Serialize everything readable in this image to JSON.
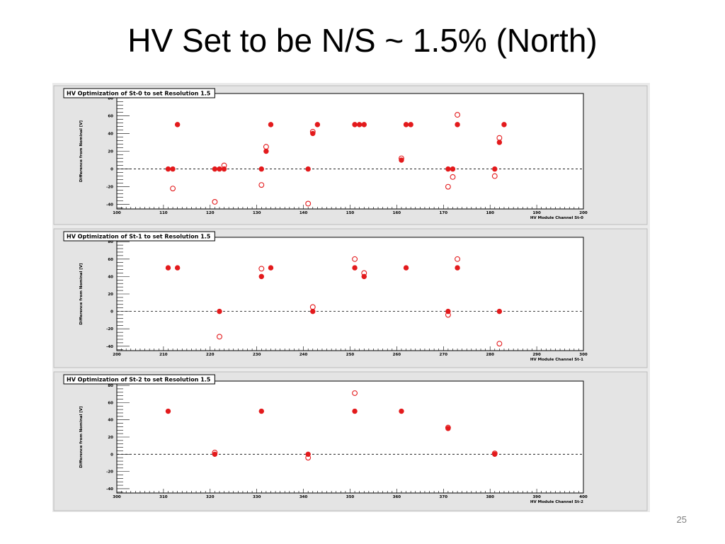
{
  "slide": {
    "title": "HV Set to be N/S ~ 1.5% (North)",
    "page_number": "25"
  },
  "colors": {
    "marker": "#e31a1c",
    "frame_background": "#ebebeb",
    "plot_background": "#ffffff"
  },
  "chart_data": [
    {
      "type": "scatter",
      "title": "HV Optimization of St-0 to set Resolution 1.5",
      "xlabel": "HV Module Channel St-0",
      "ylabel": "Difference from Nominal [V]",
      "xlim": [
        100,
        200
      ],
      "ylim": [
        -45,
        85
      ],
      "xticks": [
        "100",
        "110",
        "120",
        "130",
        "140",
        "150",
        "160",
        "170",
        "180",
        "190",
        "200"
      ],
      "yticks": [
        "-40",
        "-20",
        "0",
        "20",
        "40",
        "60",
        "80"
      ],
      "reference_line_y": 0,
      "grid": false,
      "series": [
        {
          "marker": "filled-circle",
          "points": [
            [
              111,
              0
            ],
            [
              112,
              0
            ],
            [
              113,
              50
            ],
            [
              121,
              0
            ],
            [
              122,
              0
            ],
            [
              123,
              0
            ],
            [
              131,
              0
            ],
            [
              132,
              20
            ],
            [
              133,
              50
            ],
            [
              141,
              0
            ],
            [
              142,
              40
            ],
            [
              143,
              50
            ],
            [
              151,
              50
            ],
            [
              152,
              50
            ],
            [
              153,
              50
            ],
            [
              161,
              10
            ],
            [
              162,
              50
            ],
            [
              163,
              50
            ],
            [
              171,
              0
            ],
            [
              172,
              0
            ],
            [
              173,
              50
            ],
            [
              181,
              0
            ],
            [
              182,
              30
            ],
            [
              183,
              50
            ]
          ]
        },
        {
          "marker": "open-circle",
          "points": [
            [
              112,
              -22
            ],
            [
              121,
              -37
            ],
            [
              123,
              4
            ],
            [
              131,
              -18
            ],
            [
              132,
              25
            ],
            [
              141,
              -39
            ],
            [
              142,
              42
            ],
            [
              161,
              12
            ],
            [
              171,
              -20
            ],
            [
              172,
              -9
            ],
            [
              173,
              61
            ],
            [
              181,
              -8
            ],
            [
              182,
              35
            ]
          ]
        }
      ]
    },
    {
      "type": "scatter",
      "title": "HV Optimization of St-1 to set Resolution 1.5",
      "xlabel": "HV Module Channel St-1",
      "ylabel": "Difference from Nominal [V]",
      "xlim": [
        200,
        300
      ],
      "ylim": [
        -45,
        85
      ],
      "xticks": [
        "200",
        "210",
        "220",
        "230",
        "240",
        "250",
        "260",
        "270",
        "280",
        "290",
        "300"
      ],
      "yticks": [
        "-40",
        "-20",
        "0",
        "20",
        "40",
        "60",
        "80"
      ],
      "reference_line_y": 0,
      "grid": false,
      "series": [
        {
          "marker": "filled-circle",
          "points": [
            [
              211,
              50
            ],
            [
              213,
              50
            ],
            [
              222,
              0
            ],
            [
              231,
              40
            ],
            [
              233,
              50
            ],
            [
              242,
              0
            ],
            [
              251,
              50
            ],
            [
              253,
              40
            ],
            [
              262,
              50
            ],
            [
              271,
              0
            ],
            [
              273,
              50
            ],
            [
              282,
              0
            ]
          ]
        },
        {
          "marker": "open-circle",
          "points": [
            [
              222,
              -29
            ],
            [
              231,
              49
            ],
            [
              242,
              5
            ],
            [
              251,
              60
            ],
            [
              253,
              44
            ],
            [
              271,
              -4
            ],
            [
              273,
              60
            ],
            [
              282,
              -37
            ]
          ]
        }
      ]
    },
    {
      "type": "scatter",
      "title": "HV Optimization of St-2 to set Resolution 1.5",
      "xlabel": "HV Module Channel St-2",
      "ylabel": "Difference from Nominal [V]",
      "xlim": [
        300,
        400
      ],
      "ylim": [
        -45,
        85
      ],
      "xticks": [
        "300",
        "310",
        "320",
        "330",
        "340",
        "350",
        "360",
        "370",
        "380",
        "390",
        "400"
      ],
      "yticks": [
        "-40",
        "-20",
        "0",
        "20",
        "40",
        "60",
        "80"
      ],
      "reference_line_y": 0,
      "grid": false,
      "series": [
        {
          "marker": "filled-circle",
          "points": [
            [
              311,
              50
            ],
            [
              321,
              0
            ],
            [
              331,
              50
            ],
            [
              341,
              0
            ],
            [
              351,
              50
            ],
            [
              361,
              50
            ],
            [
              371,
              30
            ],
            [
              381,
              0
            ]
          ]
        },
        {
          "marker": "open-circle",
          "points": [
            [
              321,
              2
            ],
            [
              341,
              -4
            ],
            [
              351,
              71
            ],
            [
              371,
              31
            ],
            [
              381,
              1
            ]
          ]
        }
      ]
    }
  ]
}
